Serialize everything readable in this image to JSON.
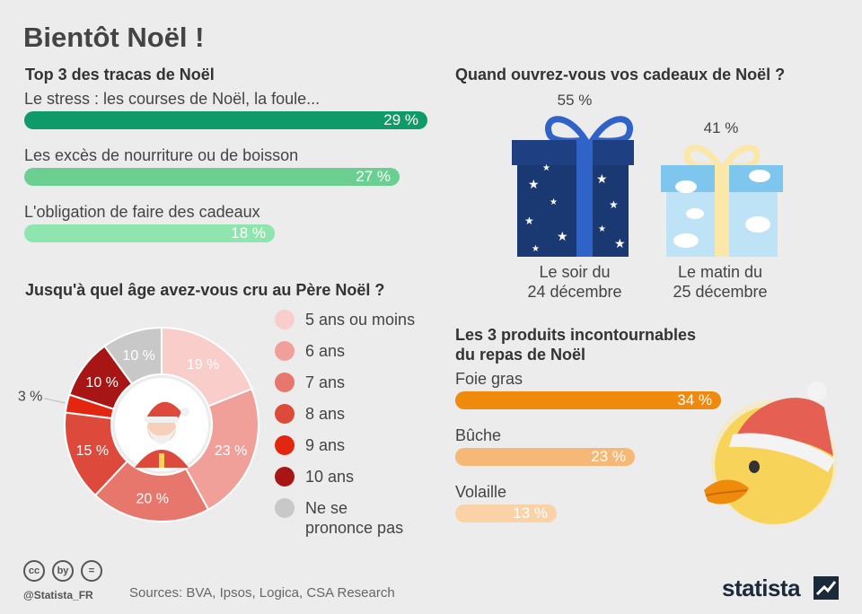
{
  "title": "Bientôt Noël !",
  "tracas": {
    "heading": "Top 3 des tracas de Noël",
    "items": [
      {
        "label": "Le stress : les courses de Noël, la foule...",
        "value": 29,
        "value_label": "29 %",
        "color": "#0f9a6a"
      },
      {
        "label": "Les excès de nourriture ou de boisson",
        "value": 27,
        "value_label": "27 %",
        "color": "#6ccf92"
      },
      {
        "label": "L'obligation de faire des cadeaux",
        "value": 18,
        "value_label": "18 %",
        "color": "#8ee5ad"
      }
    ]
  },
  "cadeaux": {
    "heading": "Quand ouvrez-vous vos cadeaux de Noël ?",
    "items": [
      {
        "value_label": "55 %",
        "caption_line1": "Le soir du",
        "caption_line2": "24 décembre"
      },
      {
        "value_label": "41 %",
        "caption_line1": "Le matin du",
        "caption_line2": "25 décembre"
      }
    ]
  },
  "age": {
    "heading": "Jusqu'à quel âge avez-vous cru au Père Noël ?",
    "legend": [
      {
        "label": "5 ans ou moins",
        "color": "#f9cdc9"
      },
      {
        "label": "6 ans",
        "color": "#f0a099"
      },
      {
        "label": "7 ans",
        "color": "#e7776d"
      },
      {
        "label": "8 ans",
        "color": "#dd4a3c"
      },
      {
        "label": "9 ans",
        "color": "#e3260f"
      },
      {
        "label": "10 ans",
        "color": "#a81515"
      },
      {
        "label_line1": "Ne se",
        "label_line2": "prononce pas",
        "color": "#c8c8c8"
      }
    ]
  },
  "produits": {
    "heading_line1": "Les 3 produits incontournables",
    "heading_line2": "du repas de Noël",
    "items": [
      {
        "label": "Foie gras",
        "value": 34,
        "value_label": "34 %",
        "color": "#f08a0d"
      },
      {
        "label": "Bûche",
        "value": 23,
        "value_label": "23 %",
        "color": "#f6b877"
      },
      {
        "label": "Volaille",
        "value": 13,
        "value_label": "13 %",
        "color": "#fbd2a6"
      }
    ]
  },
  "footer": {
    "handle": "@Statista_FR",
    "sources": "Sources: BVA, Ipsos, Logica, CSA Research",
    "brand": "statista",
    "cc_icons": [
      "cc",
      "by",
      "="
    ]
  },
  "chart_data": [
    {
      "type": "bar",
      "title": "Top 3 des tracas de Noël",
      "categories": [
        "Le stress : les courses de Noël, la foule...",
        "Les excès de nourriture ou de boisson",
        "L'obligation de faire des cadeaux"
      ],
      "values": [
        29,
        27,
        18
      ],
      "unit": "%"
    },
    {
      "type": "pie",
      "title": "Jusqu'à quel âge avez-vous cru au Père Noël ?",
      "categories": [
        "5 ans ou moins",
        "6 ans",
        "7 ans",
        "8 ans",
        "9 ans",
        "10 ans",
        "Ne se prononce pas"
      ],
      "values": [
        19,
        23,
        20,
        15,
        3,
        10,
        10
      ],
      "value_labels": [
        "19 %",
        "23 %",
        "20 %",
        "15 %",
        "3 %",
        "10 %",
        "10 %"
      ],
      "colors": [
        "#f9cdc9",
        "#f0a099",
        "#e7776d",
        "#dd4a3c",
        "#e3260f",
        "#a81515",
        "#c8c8c8"
      ],
      "unit": "%"
    },
    {
      "type": "bar",
      "title": "Quand ouvrez-vous vos cadeaux de Noël ?",
      "categories": [
        "Le soir du 24 décembre",
        "Le matin du 25 décembre"
      ],
      "values": [
        55,
        41
      ],
      "unit": "%"
    },
    {
      "type": "bar",
      "title": "Les 3 produits incontournables du repas de Noël",
      "categories": [
        "Foie gras",
        "Bûche",
        "Volaille"
      ],
      "values": [
        34,
        23,
        13
      ],
      "unit": "%"
    }
  ]
}
